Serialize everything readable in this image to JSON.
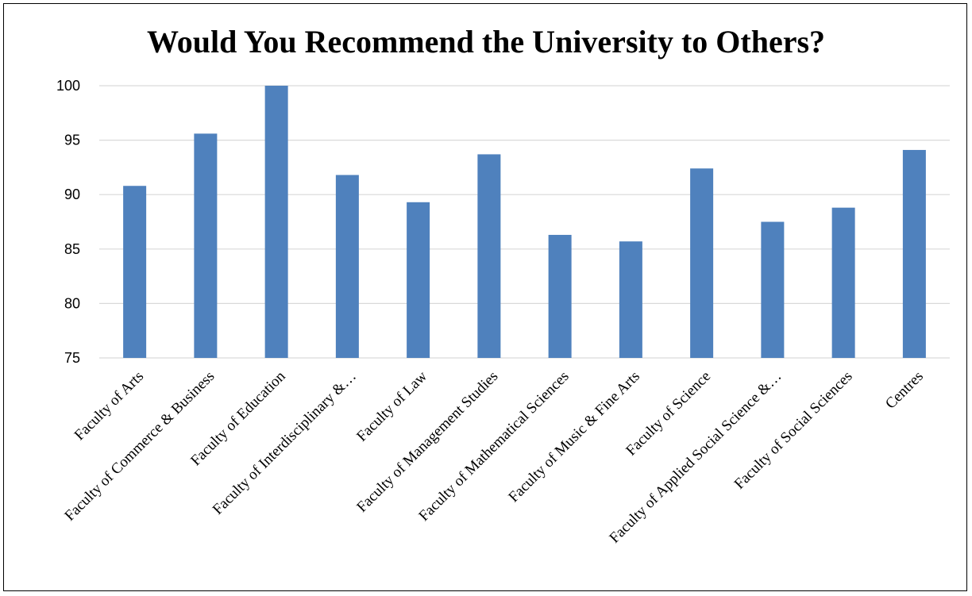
{
  "chart_data": {
    "type": "bar",
    "title": "Would You Recommend the University to Others?",
    "xlabel": "",
    "ylabel": "",
    "ylim": [
      75,
      100
    ],
    "yticks": [
      75,
      80,
      85,
      90,
      95,
      100
    ],
    "grid": true,
    "legend": "none",
    "bar_color": "#4f81bd",
    "categories": [
      "Faculty of Arts",
      "Faculty of Commerce & Business",
      "Faculty of Education",
      "Faculty of Interdisciplinary &…",
      "Faculty of Law",
      "Faculty of Management Studies",
      "Faculty of Mathematical Sciences",
      "Faculty of Music & Fine Arts",
      "Faculty of Science",
      "Faculty of Applied Social Science &…",
      "Faculty of Social Sciences",
      "Centres"
    ],
    "values": [
      90.8,
      95.6,
      100,
      91.8,
      89.3,
      93.7,
      86.3,
      85.7,
      92.4,
      87.5,
      88.8,
      94.1
    ]
  }
}
